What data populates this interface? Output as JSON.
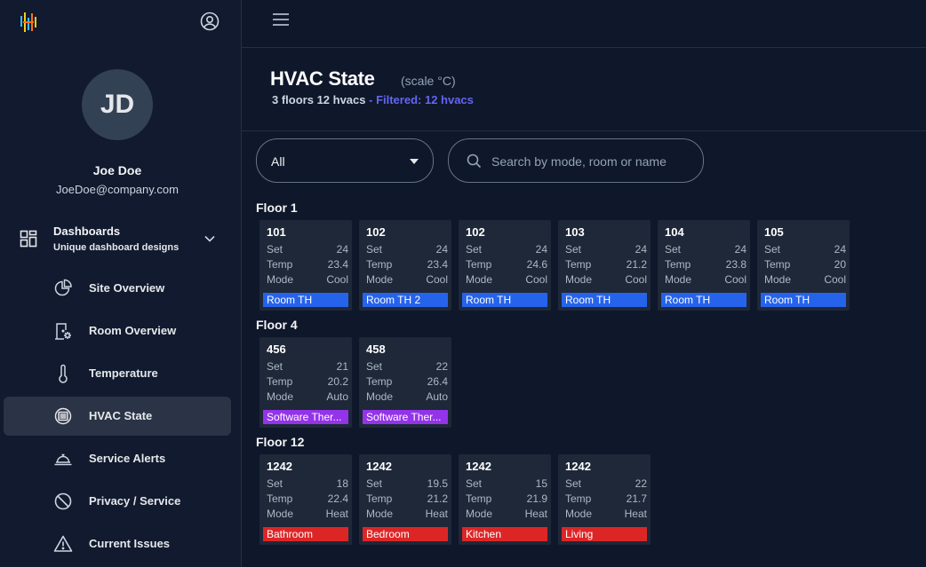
{
  "user": {
    "initials": "JD",
    "name": "Joe Doe",
    "email": "JoeDoe@company.com"
  },
  "dashboards": {
    "title": "Dashboards",
    "subtitle": "Unique dashboard designs"
  },
  "nav": [
    {
      "label": "Site Overview",
      "icon": "pie-chart-icon"
    },
    {
      "label": "Room Overview",
      "icon": "room-settings-icon"
    },
    {
      "label": "Temperature",
      "icon": "thermometer-icon"
    },
    {
      "label": "HVAC State",
      "icon": "hvac-icon",
      "active": true
    },
    {
      "label": "Service Alerts",
      "icon": "service-bell-icon"
    },
    {
      "label": "Privacy / Service",
      "icon": "block-icon"
    },
    {
      "label": "Current Issues",
      "icon": "warning-icon"
    }
  ],
  "page": {
    "title": "HVAC State",
    "scale": "(scale °C)",
    "summary": "3 floors 12 hvacs",
    "filtered": "- Filtered: 12 hvacs"
  },
  "filters": {
    "select_value": "All",
    "search_placeholder": "Search by mode, room or name"
  },
  "card_labels": {
    "set": "Set",
    "temp": "Temp",
    "mode": "Mode"
  },
  "floors": [
    {
      "title": "Floor 1",
      "cards": [
        {
          "room": "101",
          "set": "24",
          "temp": "23.4",
          "mode": "Cool",
          "tag": "Room TH",
          "color": "blue"
        },
        {
          "room": "102",
          "set": "24",
          "temp": "23.4",
          "mode": "Cool",
          "tag": "Room TH 2",
          "color": "blue"
        },
        {
          "room": "102",
          "set": "24",
          "temp": "24.6",
          "mode": "Cool",
          "tag": "Room TH",
          "color": "blue"
        },
        {
          "room": "103",
          "set": "24",
          "temp": "21.2",
          "mode": "Cool",
          "tag": "Room TH",
          "color": "blue"
        },
        {
          "room": "104",
          "set": "24",
          "temp": "23.8",
          "mode": "Cool",
          "tag": "Room TH",
          "color": "blue"
        },
        {
          "room": "105",
          "set": "24",
          "temp": "20",
          "mode": "Cool",
          "tag": "Room TH",
          "color": "blue"
        }
      ]
    },
    {
      "title": "Floor 4",
      "cards": [
        {
          "room": "456",
          "set": "21",
          "temp": "20.2",
          "mode": "Auto",
          "tag": "Software Ther...",
          "color": "purple"
        },
        {
          "room": "458",
          "set": "22",
          "temp": "26.4",
          "mode": "Auto",
          "tag": "Software Ther...",
          "color": "purple"
        }
      ]
    },
    {
      "title": "Floor 12",
      "cards": [
        {
          "room": "1242",
          "set": "18",
          "temp": "22.4",
          "mode": "Heat",
          "tag": "Bathroom",
          "color": "red"
        },
        {
          "room": "1242",
          "set": "19.5",
          "temp": "21.2",
          "mode": "Heat",
          "tag": "Bedroom",
          "color": "red"
        },
        {
          "room": "1242",
          "set": "15",
          "temp": "21.9",
          "mode": "Heat",
          "tag": "Kitchen",
          "color": "red"
        },
        {
          "room": "1242",
          "set": "22",
          "temp": "21.7",
          "mode": "Heat",
          "tag": "Living",
          "color": "red"
        }
      ]
    }
  ]
}
